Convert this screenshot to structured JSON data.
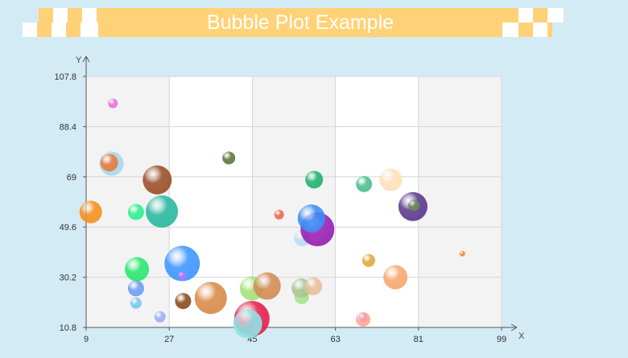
{
  "colors": {
    "background": "#d3ebf4",
    "banner": "#ffd277",
    "checker": "#ffffff",
    "plot_bg": "#f3f3f3",
    "plot_band": "#ffffff",
    "grid": "#d6d6d6",
    "axis": "#555555"
  },
  "chart_data": {
    "type": "bubble",
    "title": "Bubble Plot Example",
    "xlabel": "X",
    "ylabel": "Y",
    "xlim": [
      9,
      99
    ],
    "ylim": [
      10.8,
      107.8
    ],
    "xticks": [
      "9",
      "27",
      "45",
      "63",
      "81",
      "99"
    ],
    "yticks": [
      "10.8",
      "30.2",
      "49.6",
      "69",
      "88.4",
      "107.8"
    ],
    "grid": true,
    "legend": "none",
    "bubbles": [
      {
        "x": 14.8,
        "y": 97.4,
        "size": 1.2,
        "color": "#ef6fd8"
      },
      {
        "x": 14.5,
        "y": 74.1,
        "size": 3.0,
        "color": "#a9d8ee"
      },
      {
        "x": 14.0,
        "y": 74.5,
        "size": 2.2,
        "color": "#e57d3e"
      },
      {
        "x": 10.0,
        "y": 55.4,
        "size": 2.8,
        "color": "#f6911e"
      },
      {
        "x": 19.8,
        "y": 55.4,
        "size": 2.0,
        "color": "#2ef08f"
      },
      {
        "x": 25.4,
        "y": 55.6,
        "size": 4.0,
        "color": "#2bb89f"
      },
      {
        "x": 24.4,
        "y": 67.8,
        "size": 3.6,
        "color": "#9a5028"
      },
      {
        "x": 39.9,
        "y": 76.3,
        "size": 1.6,
        "color": "#5e7a3a"
      },
      {
        "x": 20.0,
        "y": 33.3,
        "size": 3.0,
        "color": "#29e870"
      },
      {
        "x": 29.8,
        "y": 35.5,
        "size": 4.4,
        "color": "#3d96ff"
      },
      {
        "x": 29.8,
        "y": 30.8,
        "size": 1.0,
        "color": "#c56cff"
      },
      {
        "x": 19.8,
        "y": 25.9,
        "size": 2.0,
        "color": "#6e9ef5"
      },
      {
        "x": 19.8,
        "y": 20.2,
        "size": 1.4,
        "color": "#78c8ef"
      },
      {
        "x": 25.0,
        "y": 14.9,
        "size": 1.4,
        "color": "#9eaef5"
      },
      {
        "x": 30.0,
        "y": 21.0,
        "size": 2.0,
        "color": "#8e4a1c"
      },
      {
        "x": 36.0,
        "y": 22.2,
        "size": 4.0,
        "color": "#d98a48"
      },
      {
        "x": 44.9,
        "y": 25.9,
        "size": 3.0,
        "color": "#a6e07a"
      },
      {
        "x": 44.9,
        "y": 14.2,
        "size": 4.4,
        "color": "#e5204e"
      },
      {
        "x": 44.0,
        "y": 12.2,
        "size": 3.6,
        "color": "#8ee4e4"
      },
      {
        "x": 48.2,
        "y": 26.8,
        "size": 3.4,
        "color": "#d38b55"
      },
      {
        "x": 50.8,
        "y": 54.4,
        "size": 1.2,
        "color": "#f1674c"
      },
      {
        "x": 55.8,
        "y": 45.3,
        "size": 2.0,
        "color": "#b8def2"
      },
      {
        "x": 59.1,
        "y": 48.7,
        "size": 4.2,
        "color": "#9820b2"
      },
      {
        "x": 57.8,
        "y": 53.0,
        "size": 3.4,
        "color": "#3c8cf5"
      },
      {
        "x": 58.4,
        "y": 67.9,
        "size": 2.2,
        "color": "#1db46e"
      },
      {
        "x": 55.7,
        "y": 22.6,
        "size": 1.8,
        "color": "#a6e58a"
      },
      {
        "x": 55.6,
        "y": 26.0,
        "size": 2.4,
        "color": "#a8c694"
      },
      {
        "x": 58.2,
        "y": 26.7,
        "size": 2.2,
        "color": "#e8c09a"
      },
      {
        "x": 69.2,
        "y": 66.2,
        "size": 2.0,
        "color": "#4cbf8f"
      },
      {
        "x": 75.0,
        "y": 67.8,
        "size": 2.8,
        "color": "#ffdfb8"
      },
      {
        "x": 79.8,
        "y": 57.5,
        "size": 3.6,
        "color": "#5a3a8e"
      },
      {
        "x": 80.0,
        "y": 58.0,
        "size": 1.4,
        "color": "#6f8a52"
      },
      {
        "x": 90.5,
        "y": 39.3,
        "size": 0.7,
        "color": "#f08a2a"
      },
      {
        "x": 70.2,
        "y": 36.7,
        "size": 1.6,
        "color": "#e3a83c"
      },
      {
        "x": 76.0,
        "y": 30.2,
        "size": 3.0,
        "color": "#f5a86e"
      },
      {
        "x": 69.0,
        "y": 14.7,
        "size": 1.1,
        "color": "#a540e8"
      },
      {
        "x": 69.0,
        "y": 13.9,
        "size": 1.8,
        "color": "#ffa894"
      }
    ]
  }
}
